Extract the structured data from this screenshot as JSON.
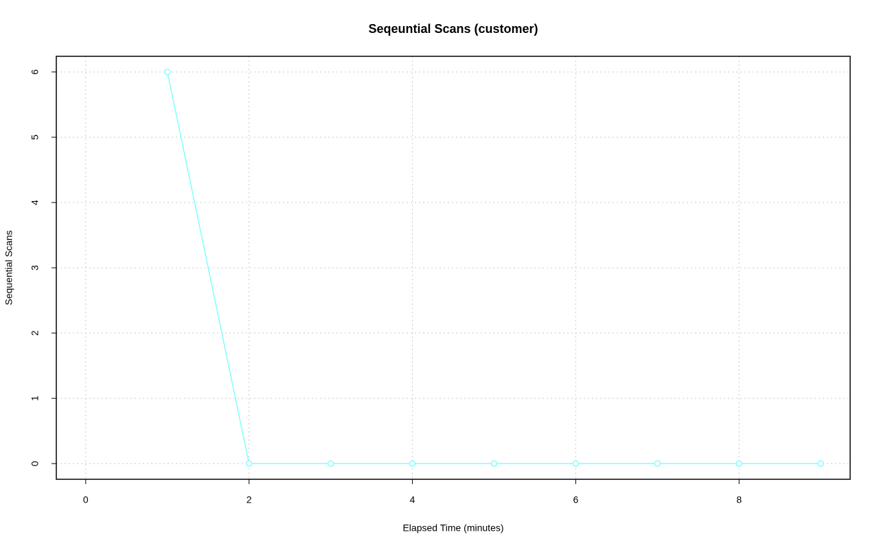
{
  "chart_data": {
    "type": "line",
    "title": "Seqeuntial Scans (customer)",
    "x_label": "Elapsed Time (minutes)",
    "y_label": "Sequential Scans",
    "x": [
      1,
      2,
      3,
      4,
      5,
      6,
      7,
      8,
      9
    ],
    "series": [
      {
        "name": "customer",
        "color": "#7fffff",
        "values": [
          6,
          0,
          0,
          0,
          0,
          0,
          0,
          0,
          0
        ]
      }
    ],
    "xlim": [
      -0.36,
      9.36
    ],
    "ylim": [
      -0.24,
      6.24
    ],
    "xticks": [
      0,
      2,
      4,
      6,
      8
    ],
    "yticks": [
      0,
      1,
      2,
      3,
      4,
      5,
      6
    ],
    "grid": true
  }
}
